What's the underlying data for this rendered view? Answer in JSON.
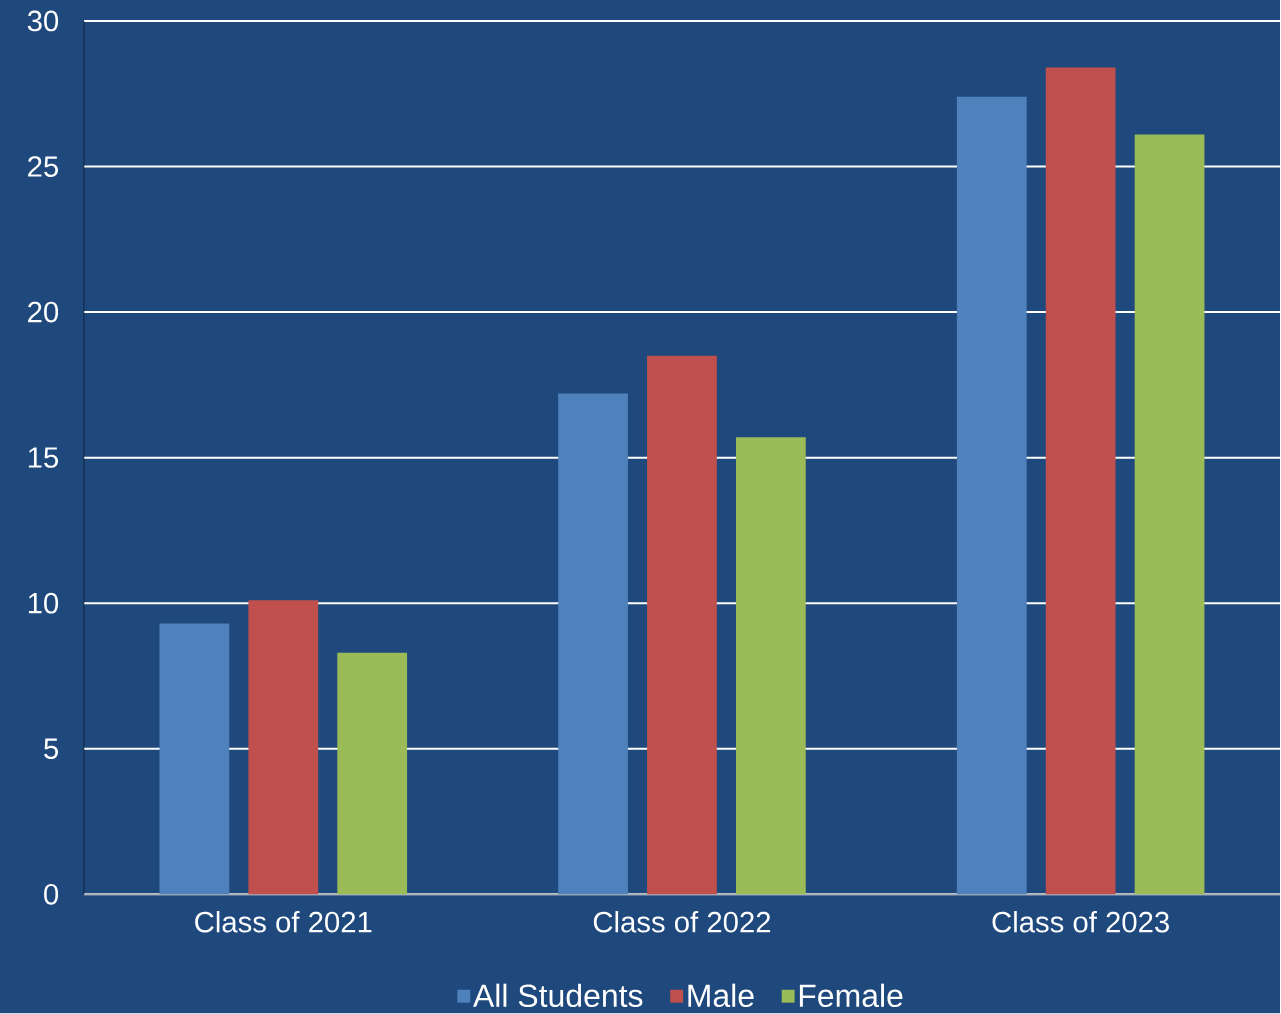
{
  "chart_data": {
    "type": "bar",
    "categories": [
      "Class of 2021",
      "Class of 2022",
      "Class of 2023"
    ],
    "series": [
      {
        "name": "All Students",
        "color": "#4f81bd",
        "values": [
          9.3,
          17.2,
          27.4
        ]
      },
      {
        "name": "Male",
        "color": "#c0504d",
        "values": [
          10.1,
          18.5,
          28.4
        ]
      },
      {
        "name": "Female",
        "color": "#9bbb59",
        "values": [
          8.3,
          15.7,
          26.1
        ]
      }
    ],
    "ylim": [
      0,
      30
    ],
    "yticks": [
      0,
      5,
      10,
      15,
      20,
      25,
      30
    ],
    "grid": "y",
    "legend": "bottom"
  }
}
